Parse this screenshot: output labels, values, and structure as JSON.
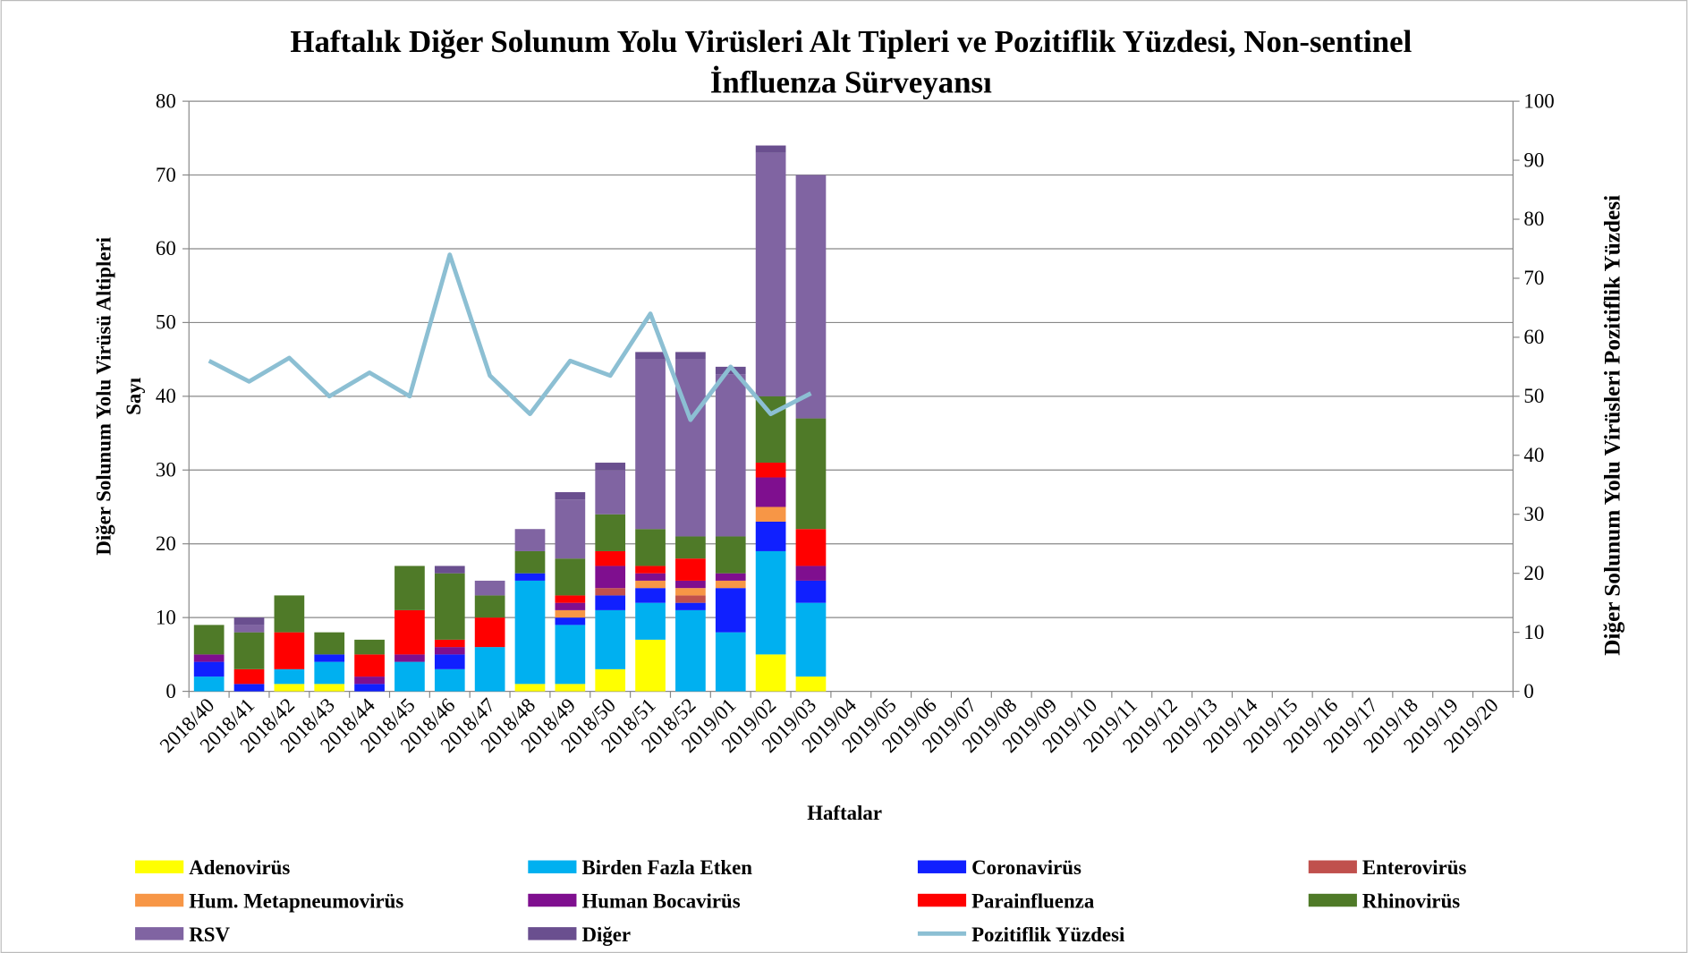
{
  "chart_data": {
    "type": "bar",
    "title": [
      "Haftalık Diğer Solunum Yolu Virüsleri Alt Tipleri ve Pozitiflik Yüzdesi, Non-sentinel",
      "İnfluenza Sürveyansı"
    ],
    "ylabel": [
      "Diğer Solunum Yolu Virüsü Altipleri",
      "Sayı"
    ],
    "y2label": "Diğer Solunum Yolu Virüsleri Pozitiflik Yüzdesi",
    "xlabel": "Haftalar",
    "categories": [
      "2018/40",
      "2018/41",
      "2018/42",
      "2018/43",
      "2018/44",
      "2018/45",
      "2018/46",
      "2018/47",
      "2018/48",
      "2018/49",
      "2018/50",
      "2018/51",
      "2018/52",
      "2019/01",
      "2019/02",
      "2019/03",
      "2019/04",
      "2019/05",
      "2019/06",
      "2019/07",
      "2019/08",
      "2019/09",
      "2019/10",
      "2019/11",
      "2019/12",
      "2019/13",
      "2019/14",
      "2019/15",
      "2019/16",
      "2019/17",
      "2019/18",
      "2019/19",
      "2019/20"
    ],
    "stacked": true,
    "ylim": [
      0,
      80
    ],
    "yticks": [
      0,
      10,
      20,
      30,
      40,
      50,
      60,
      70,
      80
    ],
    "y2lim": [
      0,
      100
    ],
    "y2ticks": [
      0,
      10,
      20,
      30,
      40,
      50,
      60,
      70,
      80,
      90,
      100
    ],
    "grid": true,
    "series": [
      {
        "name": "Adenovirüs",
        "color": "#ffff00",
        "values": [
          0,
          0,
          1,
          1,
          0,
          0,
          0,
          0,
          1,
          1,
          3,
          7,
          0,
          0,
          5,
          2,
          null,
          null,
          null,
          null,
          null,
          null,
          null,
          null,
          null,
          null,
          null,
          null,
          null,
          null,
          null,
          null,
          null
        ]
      },
      {
        "name": "Birden Fazla Etken",
        "color": "#00b0f0",
        "values": [
          2,
          0,
          2,
          3,
          0,
          4,
          3,
          6,
          14,
          8,
          8,
          5,
          11,
          8,
          14,
          10,
          null,
          null,
          null,
          null,
          null,
          null,
          null,
          null,
          null,
          null,
          null,
          null,
          null,
          null,
          null,
          null,
          null
        ]
      },
      {
        "name": "Coronavirüs",
        "color": "#1020ff",
        "values": [
          2,
          1,
          0,
          1,
          1,
          0,
          2,
          0,
          1,
          1,
          2,
          2,
          1,
          6,
          4,
          3,
          null,
          null,
          null,
          null,
          null,
          null,
          null,
          null,
          null,
          null,
          null,
          null,
          null,
          null,
          null,
          null,
          null
        ]
      },
      {
        "name": "Enterovirüs",
        "color": "#c0504d",
        "values": [
          0,
          0,
          0,
          0,
          0,
          0,
          0,
          0,
          0,
          0,
          1,
          0,
          1,
          0,
          0,
          0,
          null,
          null,
          null,
          null,
          null,
          null,
          null,
          null,
          null,
          null,
          null,
          null,
          null,
          null,
          null,
          null,
          null
        ]
      },
      {
        "name": "Hum. Metapneumovirüs",
        "color": "#f79646",
        "values": [
          0,
          0,
          0,
          0,
          0,
          0,
          0,
          0,
          0,
          1,
          0,
          1,
          1,
          1,
          2,
          0,
          null,
          null,
          null,
          null,
          null,
          null,
          null,
          null,
          null,
          null,
          null,
          null,
          null,
          null,
          null,
          null,
          null
        ]
      },
      {
        "name": "Human Bocavirüs",
        "color": "#7f0f8f",
        "values": [
          1,
          0,
          0,
          0,
          1,
          1,
          1,
          0,
          0,
          1,
          3,
          1,
          1,
          1,
          4,
          2,
          null,
          null,
          null,
          null,
          null,
          null,
          null,
          null,
          null,
          null,
          null,
          null,
          null,
          null,
          null,
          null,
          null
        ]
      },
      {
        "name": "Parainfluenza",
        "color": "#ff0000",
        "values": [
          0,
          2,
          5,
          0,
          3,
          6,
          1,
          4,
          0,
          1,
          2,
          1,
          3,
          0,
          2,
          5,
          null,
          null,
          null,
          null,
          null,
          null,
          null,
          null,
          null,
          null,
          null,
          null,
          null,
          null,
          null,
          null,
          null
        ]
      },
      {
        "name": "Rhinovirüs",
        "color": "#4f7a28",
        "values": [
          4,
          5,
          5,
          3,
          2,
          6,
          9,
          3,
          3,
          5,
          5,
          5,
          3,
          5,
          9,
          15,
          null,
          null,
          null,
          null,
          null,
          null,
          null,
          null,
          null,
          null,
          null,
          null,
          null,
          null,
          null,
          null,
          null
        ]
      },
      {
        "name": "RSV",
        "color": "#8064a2",
        "values": [
          0,
          1,
          0,
          0,
          0,
          0,
          0,
          2,
          3,
          8,
          6,
          23,
          24,
          22,
          33,
          33,
          null,
          null,
          null,
          null,
          null,
          null,
          null,
          null,
          null,
          null,
          null,
          null,
          null,
          null,
          null,
          null,
          null
        ]
      },
      {
        "name": "Diğer",
        "color": "#6a4f8f",
        "values": [
          0,
          1,
          0,
          0,
          0,
          0,
          1,
          0,
          0,
          1,
          1,
          1,
          1,
          1,
          1,
          0,
          null,
          null,
          null,
          null,
          null,
          null,
          null,
          null,
          null,
          null,
          null,
          null,
          null,
          null,
          null,
          null,
          null
        ]
      },
      {
        "name": "Pozitiflik Yüzdesi",
        "color": "#8cbfd3",
        "type": "line",
        "axis": "y2",
        "values": [
          56,
          52.5,
          56.5,
          50,
          54,
          50,
          74,
          53.5,
          47,
          56,
          53.5,
          64,
          46,
          55,
          47,
          50.5,
          null,
          null,
          null,
          null,
          null,
          null,
          null,
          null,
          null,
          null,
          null,
          null,
          null,
          null,
          null,
          null,
          null
        ]
      }
    ]
  }
}
